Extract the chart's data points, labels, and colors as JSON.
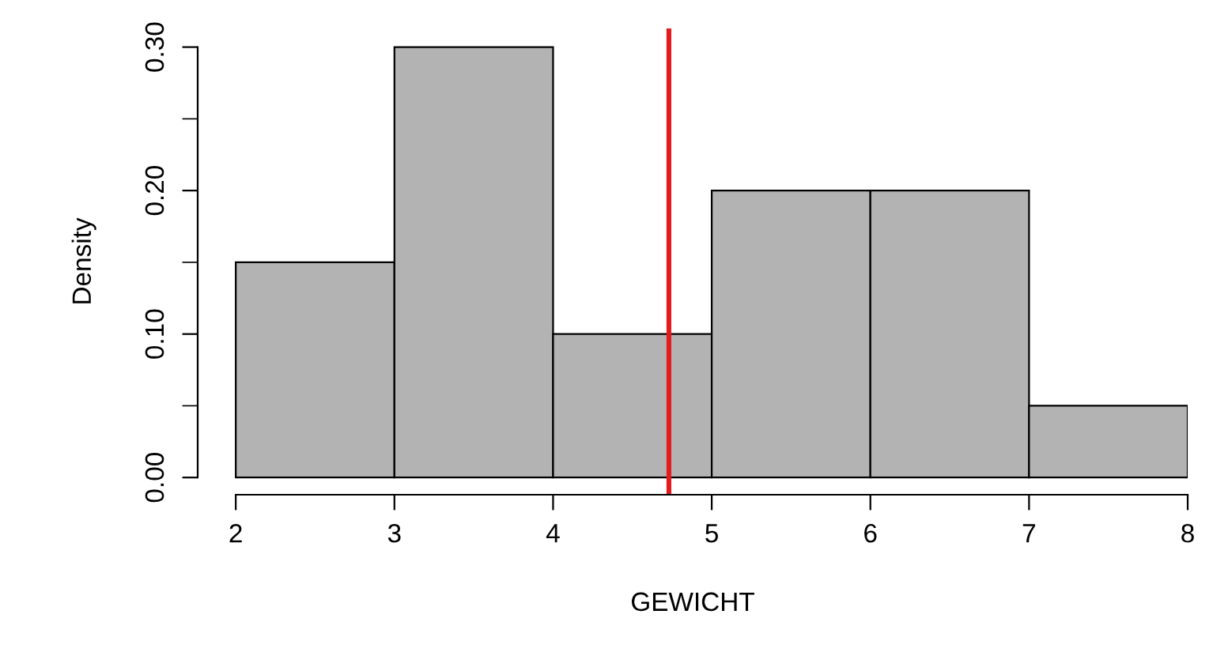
{
  "chart_data": {
    "type": "histogram",
    "xlabel": "GEWICHT",
    "ylabel": "Density",
    "bins": [
      2,
      3,
      4,
      5,
      6,
      7,
      8
    ],
    "values": [
      0.15,
      0.3,
      0.1,
      0.2,
      0.2,
      0.05
    ],
    "color": "#b3b3b3",
    "xlim": [
      1.76,
      8
    ],
    "ylim": [
      -0.012,
      0.313
    ],
    "xticks": [
      2,
      3,
      4,
      5,
      6,
      7,
      8
    ],
    "yticks": [
      {
        "value": 0.0,
        "label": "0.00"
      },
      {
        "value": 0.05,
        "label": null
      },
      {
        "value": 0.1,
        "label": "0.10"
      },
      {
        "value": 0.15,
        "label": null
      },
      {
        "value": 0.2,
        "label": "0.20"
      },
      {
        "value": 0.25,
        "label": null
      },
      {
        "value": 0.3,
        "label": "0.30"
      }
    ],
    "ref_lines": [
      {
        "axis": "x",
        "value": 4.73,
        "color": "#e41a1c",
        "line_style": "solid"
      }
    ]
  }
}
